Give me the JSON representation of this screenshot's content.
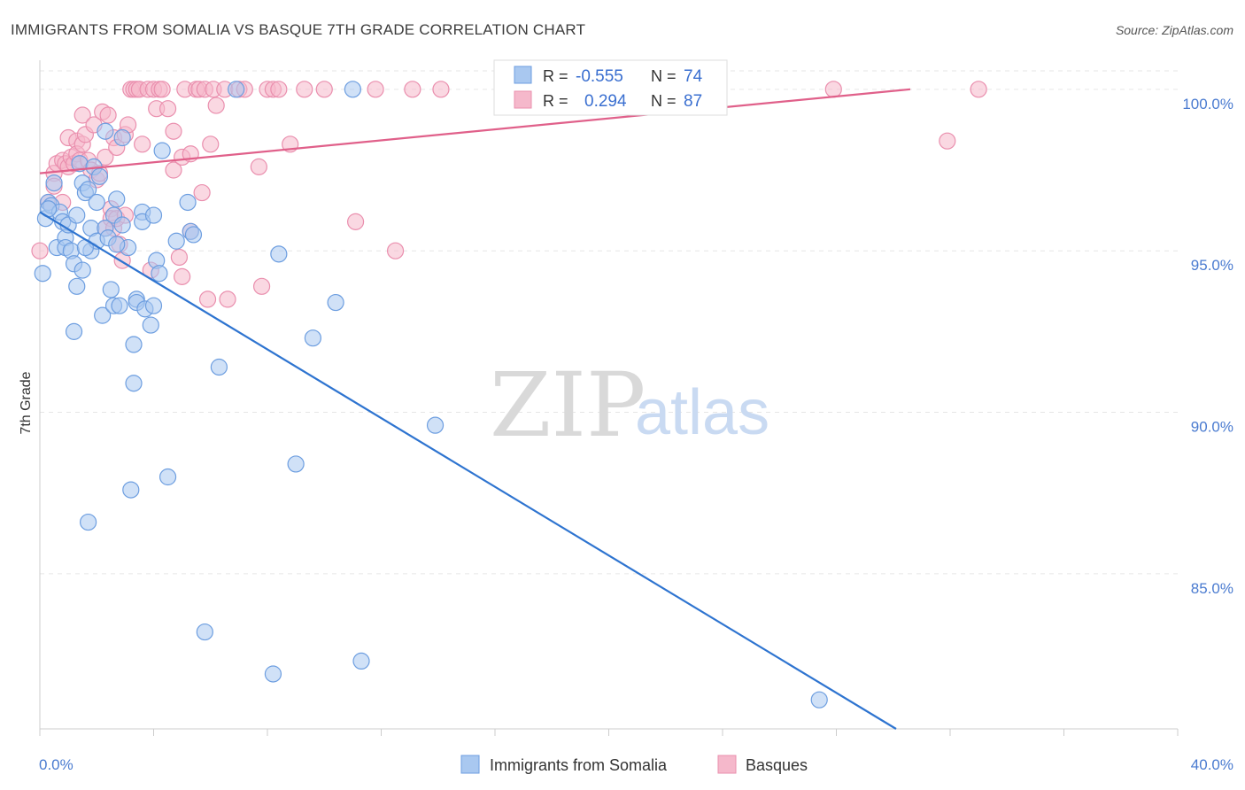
{
  "chart_data": {
    "type": "scatter",
    "title": "IMMIGRANTS FROM SOMALIA VS BASQUE 7TH GRADE CORRELATION CHART",
    "source": "Source: ZipAtlas.com",
    "ylabel": "7th Grade",
    "xlim": [
      0,
      40
    ],
    "ylim": [
      80.2,
      100.9
    ],
    "x_tick_labels": [
      "0.0%",
      "40.0%"
    ],
    "y_ticks": [
      {
        "value": 100,
        "label": "100.0%"
      },
      {
        "value": 95,
        "label": "95.0%"
      },
      {
        "value": 90,
        "label": "90.0%"
      },
      {
        "value": 85,
        "label": "85.0%"
      }
    ],
    "grid": true,
    "legend": "bottom-center",
    "watermark": {
      "zip": "ZIP",
      "atlas": "atlas"
    },
    "colors": {
      "somalia_fill": "#a9c8f0",
      "somalia_stroke": "#6d9ee0",
      "somalia_line": "#2e74d0",
      "basque_fill": "#f5b8cb",
      "basque_stroke": "#ea8fae",
      "basque_line": "#e0608a"
    },
    "stats": {
      "r_label": "R =",
      "n_label": "N =",
      "rows": [
        {
          "r": "-0.555",
          "n": "74"
        },
        {
          "r": "0.294",
          "n": "87"
        }
      ]
    },
    "series": [
      {
        "name": "Immigrants from Somalia",
        "trend": {
          "x": [
            0,
            30.1
          ],
          "y": [
            96.2,
            80.2
          ]
        },
        "points": [
          [
            0.1,
            94.3
          ],
          [
            0.2,
            96.0
          ],
          [
            0.3,
            96.5
          ],
          [
            0.4,
            96.4
          ],
          [
            0.5,
            97.1
          ],
          [
            0.6,
            95.1
          ],
          [
            0.7,
            96.2
          ],
          [
            0.8,
            95.9
          ],
          [
            0.9,
            95.4
          ],
          [
            0.9,
            95.1
          ],
          [
            1.0,
            95.8
          ],
          [
            1.1,
            95.0
          ],
          [
            1.2,
            92.5
          ],
          [
            1.2,
            94.6
          ],
          [
            1.3,
            96.1
          ],
          [
            1.3,
            93.9
          ],
          [
            1.4,
            97.7
          ],
          [
            1.5,
            94.4
          ],
          [
            1.5,
            97.1
          ],
          [
            1.6,
            96.8
          ],
          [
            1.7,
            96.9
          ],
          [
            1.7,
            86.6
          ],
          [
            1.8,
            95.7
          ],
          [
            1.8,
            95.0
          ],
          [
            1.9,
            97.6
          ],
          [
            2.0,
            96.5
          ],
          [
            2.0,
            95.3
          ],
          [
            2.1,
            97.3
          ],
          [
            2.2,
            93.0
          ],
          [
            2.3,
            98.7
          ],
          [
            2.3,
            95.7
          ],
          [
            2.4,
            95.4
          ],
          [
            2.5,
            93.8
          ],
          [
            2.6,
            96.1
          ],
          [
            2.6,
            93.3
          ],
          [
            2.7,
            96.6
          ],
          [
            2.8,
            93.3
          ],
          [
            2.9,
            98.5
          ],
          [
            2.9,
            95.8
          ],
          [
            3.1,
            95.1
          ],
          [
            3.2,
            87.6
          ],
          [
            3.3,
            92.1
          ],
          [
            3.3,
            90.9
          ],
          [
            3.4,
            93.5
          ],
          [
            3.4,
            93.4
          ],
          [
            3.6,
            96.2
          ],
          [
            3.6,
            95.9
          ],
          [
            3.7,
            93.2
          ],
          [
            3.9,
            92.7
          ],
          [
            4.0,
            96.1
          ],
          [
            4.0,
            93.3
          ],
          [
            4.1,
            94.7
          ],
          [
            4.2,
            94.3
          ],
          [
            4.3,
            98.1
          ],
          [
            4.5,
            88.0
          ],
          [
            4.8,
            95.3
          ],
          [
            5.2,
            96.5
          ],
          [
            5.3,
            95.6
          ],
          [
            5.4,
            95.5
          ],
          [
            5.8,
            83.2
          ],
          [
            6.3,
            91.4
          ],
          [
            6.9,
            100.0
          ],
          [
            8.2,
            81.9
          ],
          [
            8.4,
            94.9
          ],
          [
            9.0,
            88.4
          ],
          [
            9.6,
            92.3
          ],
          [
            10.4,
            93.4
          ],
          [
            11.0,
            100.0
          ],
          [
            11.3,
            82.3
          ],
          [
            13.9,
            89.6
          ],
          [
            27.4,
            81.1
          ],
          [
            0.3,
            96.3
          ],
          [
            1.6,
            95.1
          ],
          [
            2.7,
            95.2
          ]
        ]
      },
      {
        "name": "Basques",
        "trend": {
          "x": [
            0,
            30.6
          ],
          "y": [
            97.4,
            100.0
          ]
        },
        "points": [
          [
            0.0,
            95.0
          ],
          [
            0.3,
            96.5
          ],
          [
            0.5,
            97.4
          ],
          [
            0.5,
            97.0
          ],
          [
            0.6,
            97.7
          ],
          [
            0.8,
            97.8
          ],
          [
            0.8,
            96.5
          ],
          [
            0.9,
            97.7
          ],
          [
            1.0,
            98.5
          ],
          [
            1.0,
            97.6
          ],
          [
            1.1,
            97.9
          ],
          [
            1.2,
            97.7
          ],
          [
            1.3,
            98.4
          ],
          [
            1.3,
            98.0
          ],
          [
            1.4,
            97.8
          ],
          [
            1.5,
            98.3
          ],
          [
            1.5,
            99.2
          ],
          [
            1.6,
            98.6
          ],
          [
            1.7,
            97.8
          ],
          [
            1.8,
            97.5
          ],
          [
            1.9,
            98.9
          ],
          [
            2.0,
            97.2
          ],
          [
            2.1,
            97.4
          ],
          [
            2.2,
            99.3
          ],
          [
            2.3,
            97.9
          ],
          [
            2.3,
            95.7
          ],
          [
            2.4,
            99.2
          ],
          [
            2.5,
            96.3
          ],
          [
            2.5,
            96.0
          ],
          [
            2.6,
            95.7
          ],
          [
            2.6,
            98.5
          ],
          [
            2.7,
            98.2
          ],
          [
            2.7,
            96.0
          ],
          [
            2.8,
            95.2
          ],
          [
            2.9,
            94.7
          ],
          [
            3.0,
            98.6
          ],
          [
            3.0,
            96.1
          ],
          [
            3.1,
            98.9
          ],
          [
            3.2,
            100.0
          ],
          [
            3.3,
            100.0
          ],
          [
            3.4,
            100.0
          ],
          [
            3.5,
            100.0
          ],
          [
            3.6,
            98.3
          ],
          [
            3.8,
            100.0
          ],
          [
            3.9,
            94.4
          ],
          [
            4.0,
            100.0
          ],
          [
            4.1,
            99.4
          ],
          [
            4.2,
            100.0
          ],
          [
            4.3,
            100.0
          ],
          [
            4.5,
            99.4
          ],
          [
            4.7,
            97.5
          ],
          [
            4.7,
            98.7
          ],
          [
            4.9,
            94.8
          ],
          [
            5.0,
            97.9
          ],
          [
            5.0,
            94.2
          ],
          [
            5.1,
            100.0
          ],
          [
            5.3,
            98.0
          ],
          [
            5.3,
            95.6
          ],
          [
            5.5,
            100.0
          ],
          [
            5.6,
            100.0
          ],
          [
            5.7,
            96.8
          ],
          [
            5.8,
            100.0
          ],
          [
            5.9,
            93.5
          ],
          [
            6.0,
            98.3
          ],
          [
            6.1,
            100.0
          ],
          [
            6.2,
            99.5
          ],
          [
            6.5,
            100.0
          ],
          [
            6.6,
            93.5
          ],
          [
            7.0,
            100.0
          ],
          [
            7.2,
            100.0
          ],
          [
            7.7,
            97.6
          ],
          [
            7.8,
            93.9
          ],
          [
            8.0,
            100.0
          ],
          [
            8.2,
            100.0
          ],
          [
            8.4,
            100.0
          ],
          [
            8.8,
            98.3
          ],
          [
            9.3,
            100.0
          ],
          [
            10.0,
            100.0
          ],
          [
            11.1,
            95.9
          ],
          [
            11.8,
            100.0
          ],
          [
            12.5,
            95.0
          ],
          [
            13.1,
            100.0
          ],
          [
            14.1,
            100.0
          ],
          [
            20.9,
            100.0
          ],
          [
            27.9,
            100.0
          ],
          [
            31.9,
            98.4
          ],
          [
            33.0,
            100.0
          ]
        ]
      }
    ]
  }
}
